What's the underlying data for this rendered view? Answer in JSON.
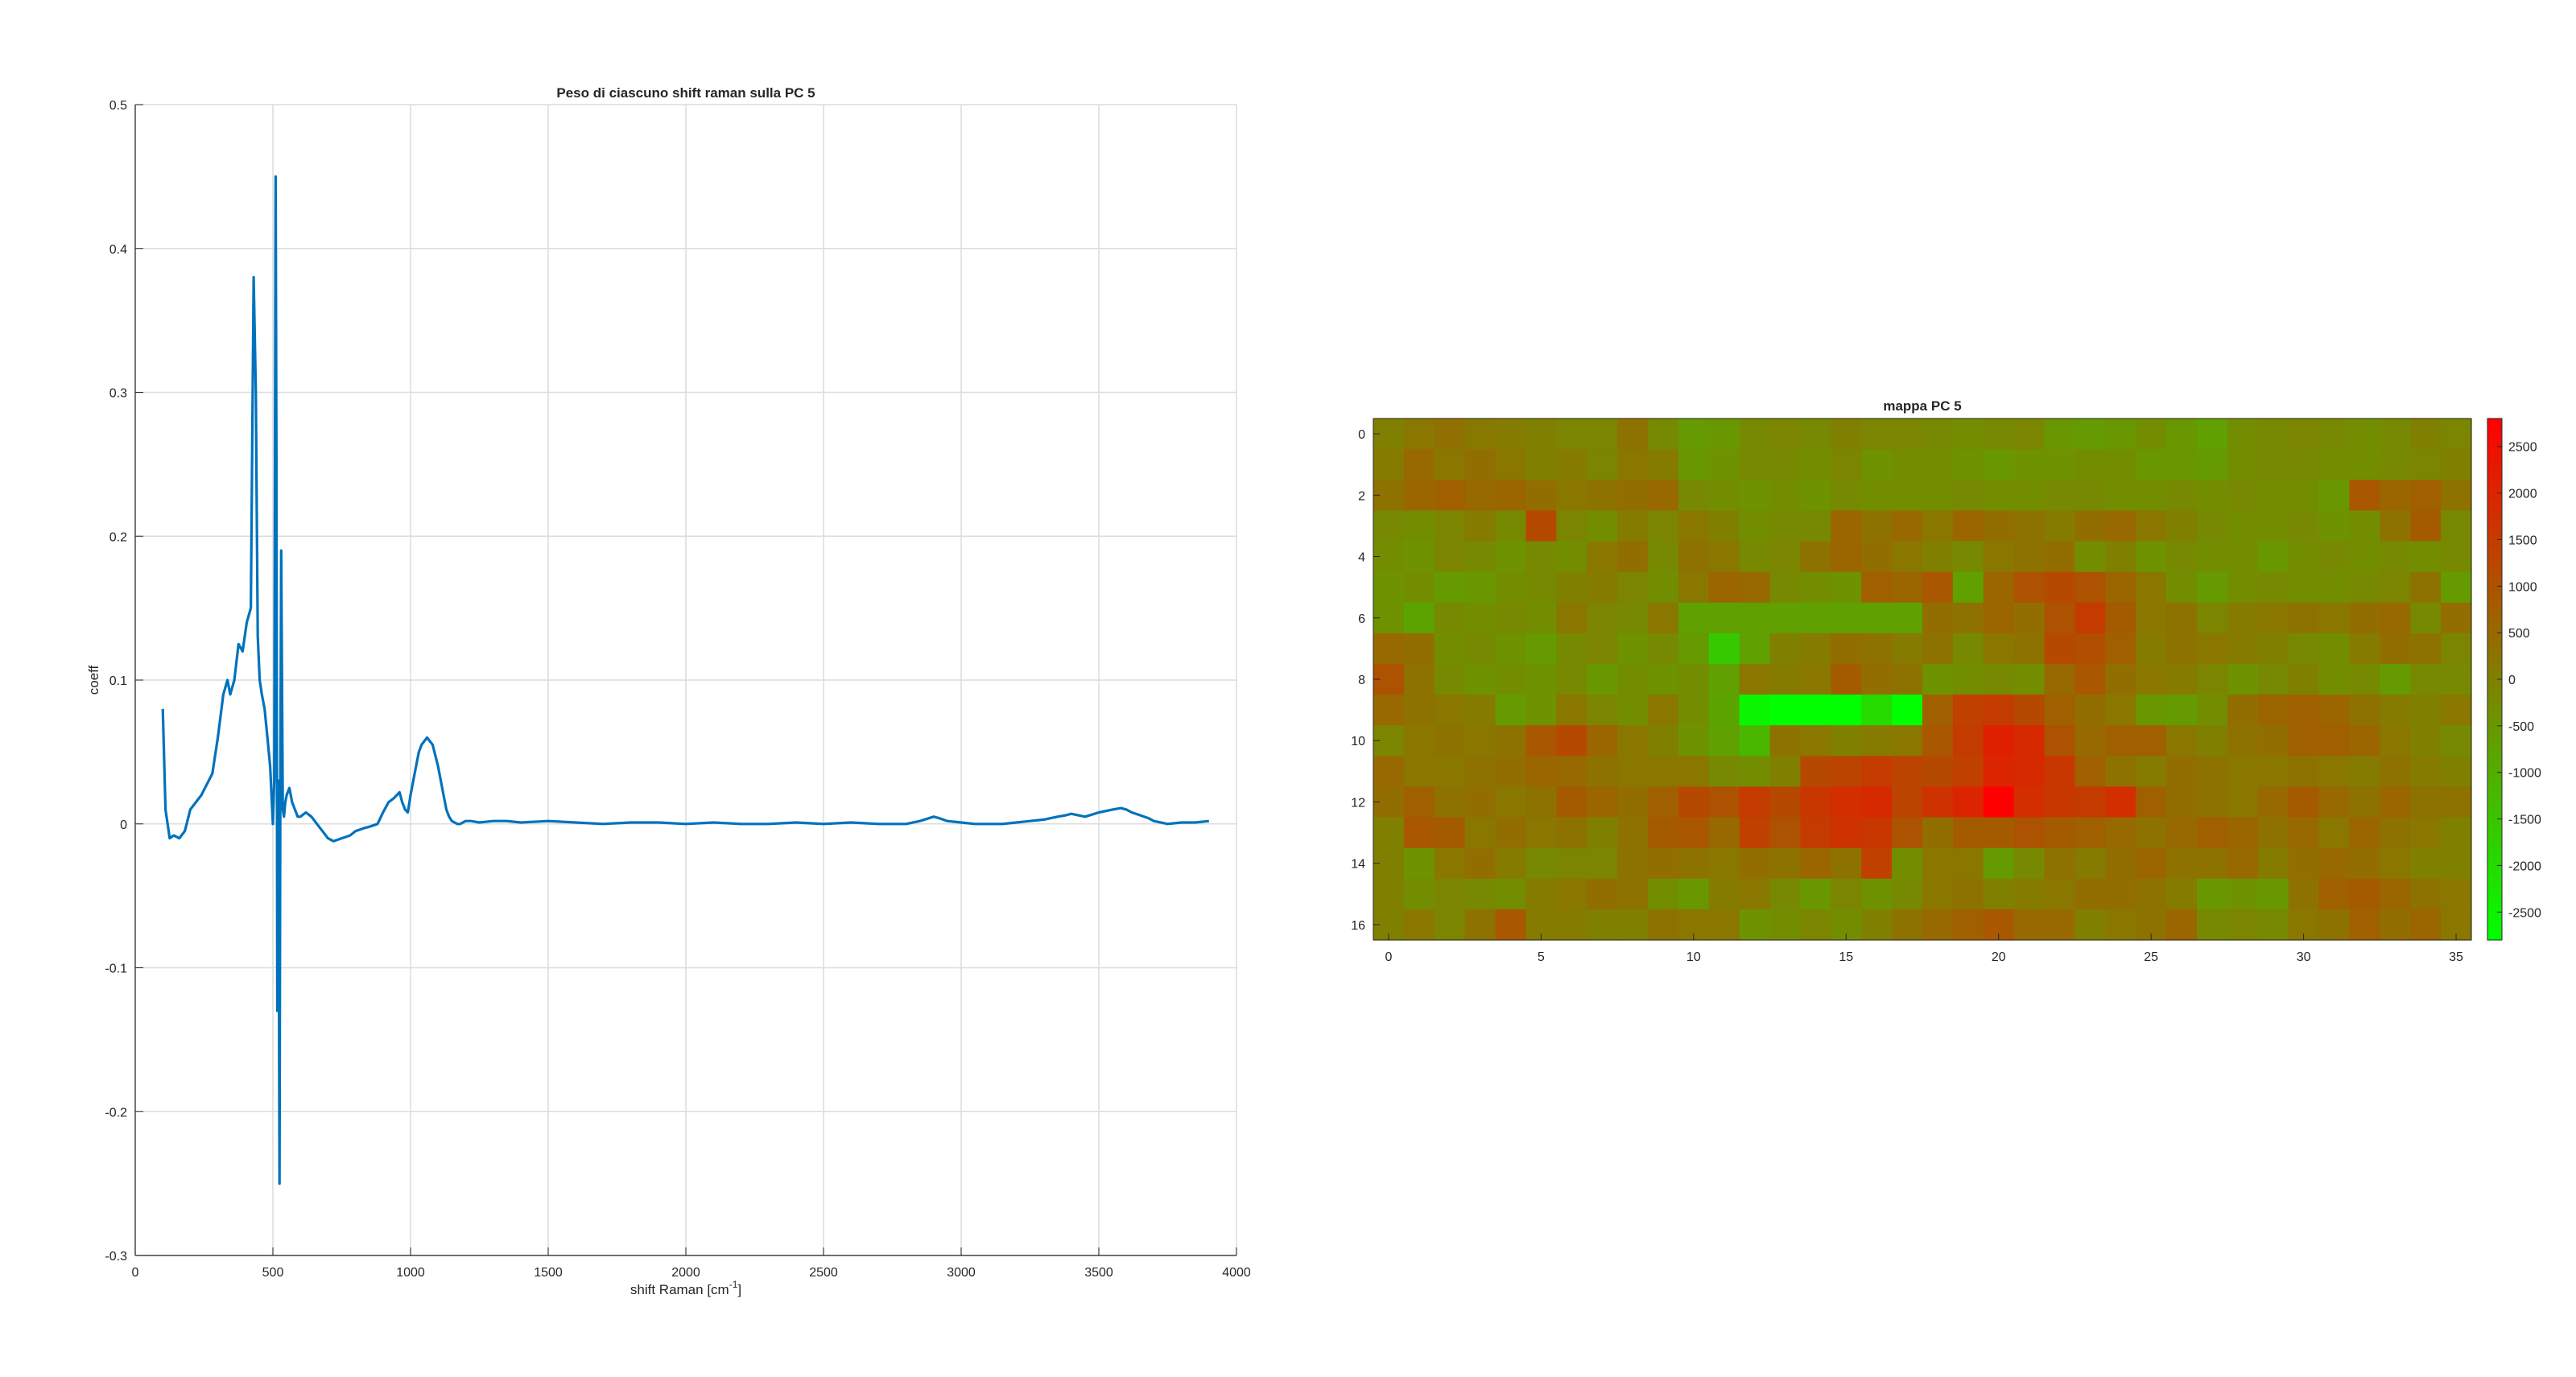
{
  "chart_data": [
    {
      "type": "line",
      "title": "Peso di ciascuno shift raman sulla PC 5",
      "xlabel": "shift Raman [cm",
      "xlabel_sup": "-1",
      "xlabel_end": "]",
      "ylabel": "coeff",
      "xlim": [
        0,
        4000
      ],
      "ylim": [
        -0.3,
        0.5
      ],
      "grid": true,
      "xticks": [
        0,
        500,
        1000,
        1500,
        2000,
        2500,
        3000,
        3500,
        4000
      ],
      "yticks": [
        -0.3,
        -0.2,
        -0.1,
        0,
        0.1,
        0.2,
        0.3,
        0.4,
        0.5
      ],
      "color": "#0072BD",
      "series": [
        {
          "x": [
            100,
            110,
            125,
            140,
            160,
            180,
            200,
            240,
            280,
            300,
            320,
            335,
            345,
            360,
            375,
            390,
            405,
            420,
            430,
            438,
            445,
            452,
            460,
            470,
            480,
            490,
            500,
            505,
            510,
            513,
            516,
            520,
            524,
            527,
            530,
            533,
            536,
            540,
            545,
            550,
            560,
            570,
            580,
            590,
            600,
            620,
            640,
            660,
            680,
            700,
            720,
            750,
            780,
            800,
            830,
            850,
            880,
            900,
            920,
            940,
            960,
            970,
            980,
            990,
            1000,
            1010,
            1020,
            1030,
            1040,
            1060,
            1080,
            1100,
            1120,
            1130,
            1140,
            1150,
            1160,
            1170,
            1180,
            1200,
            1220,
            1250,
            1300,
            1350,
            1400,
            1500,
            1600,
            1700,
            1800,
            1900,
            2000,
            2100,
            2200,
            2300,
            2400,
            2500,
            2600,
            2700,
            2800,
            2850,
            2900,
            2920,
            2950,
            3000,
            3050,
            3100,
            3150,
            3200,
            3250,
            3300,
            3350,
            3380,
            3400,
            3450,
            3500,
            3550,
            3580,
            3600,
            3620,
            3650,
            3680,
            3700,
            3750,
            3800,
            3850,
            3900
          ],
          "y": [
            0.08,
            0.01,
            -0.01,
            -0.008,
            -0.01,
            -0.005,
            0.01,
            0.02,
            0.035,
            0.06,
            0.09,
            0.1,
            0.09,
            0.1,
            0.125,
            0.12,
            0.14,
            0.15,
            0.38,
            0.3,
            0.13,
            0.1,
            0.09,
            0.08,
            0.06,
            0.04,
            0.0,
            0.03,
            0.45,
            0.25,
            -0.13,
            0.03,
            -0.25,
            0.02,
            0.19,
            0.1,
            0.01,
            0.005,
            0.015,
            0.02,
            0.025,
            0.015,
            0.01,
            0.005,
            0.005,
            0.008,
            0.005,
            0.0,
            -0.005,
            -0.01,
            -0.012,
            -0.01,
            -0.008,
            -0.005,
            -0.003,
            -0.002,
            0.0,
            0.008,
            0.015,
            0.018,
            0.022,
            0.015,
            0.01,
            0.008,
            0.02,
            0.03,
            0.04,
            0.05,
            0.055,
            0.06,
            0.055,
            0.04,
            0.02,
            0.01,
            0.005,
            0.002,
            0.001,
            0.0,
            0.0,
            0.002,
            0.002,
            0.001,
            0.002,
            0.002,
            0.001,
            0.002,
            0.001,
            0.0,
            0.001,
            0.001,
            0.0,
            0.001,
            0.0,
            0.0,
            0.001,
            0.0,
            0.001,
            0.0,
            0.0,
            0.002,
            0.005,
            0.004,
            0.002,
            0.001,
            0.0,
            0.0,
            0.0,
            0.001,
            0.002,
            0.003,
            0.005,
            0.006,
            0.007,
            0.005,
            0.008,
            0.01,
            0.011,
            0.01,
            0.008,
            0.006,
            0.004,
            0.002,
            0.0,
            0.001,
            0.001,
            0.002
          ]
        }
      ]
    },
    {
      "type": "heatmap",
      "title": "mappa PC 5",
      "xlim": [
        -0.5,
        35.5
      ],
      "ylim": [
        -0.5,
        16.5
      ],
      "xticks": [
        0,
        5,
        10,
        15,
        20,
        25,
        30,
        35
      ],
      "yticks": [
        0,
        2,
        4,
        6,
        8,
        10,
        12,
        14,
        16
      ],
      "colorbar": {
        "ticks": [
          2500,
          2000,
          1500,
          1000,
          500,
          0,
          -500,
          -1000,
          -1500,
          -2000,
          -2500
        ],
        "range": [
          -2800,
          2800
        ],
        "colors": [
          "#00ff00",
          "#808000",
          "#ff0000"
        ]
      },
      "rows": 17,
      "cols": 36,
      "values": [
        [
          0,
          200,
          350,
          150,
          100,
          0,
          -100,
          -100,
          300,
          -200,
          -600,
          -500,
          -200,
          -100,
          -200,
          0,
          -100,
          -100,
          -200,
          -300,
          -200,
          -100,
          -500,
          -600,
          -500,
          -300,
          -500,
          -700,
          -300,
          -200,
          -100,
          -200,
          -300,
          -200,
          0,
          -100
        ],
        [
          100,
          500,
          200,
          400,
          200,
          0,
          100,
          -100,
          200,
          100,
          -500,
          -400,
          -200,
          -200,
          -300,
          -100,
          -400,
          -300,
          -300,
          -400,
          -500,
          -400,
          -400,
          -300,
          -300,
          -500,
          -500,
          -600,
          -300,
          -200,
          -200,
          -300,
          -300,
          -200,
          -100,
          0
        ],
        [
          300,
          600,
          700,
          500,
          600,
          400,
          200,
          300,
          400,
          500,
          -200,
          -300,
          -400,
          -300,
          -400,
          -200,
          -300,
          -300,
          -300,
          -200,
          -300,
          -300,
          -200,
          -200,
          -300,
          -300,
          -200,
          -300,
          -200,
          -300,
          -300,
          -500,
          900,
          600,
          700,
          300
        ],
        [
          -200,
          -300,
          -100,
          100,
          -200,
          1200,
          -100,
          -300,
          100,
          -100,
          200,
          0,
          -300,
          -200,
          -200,
          600,
          300,
          500,
          200,
          600,
          400,
          300,
          100,
          400,
          500,
          200,
          0,
          -200,
          -300,
          -300,
          -200,
          -400,
          -300,
          300,
          800,
          -200
        ],
        [
          -300,
          -400,
          -100,
          -200,
          -400,
          -200,
          -300,
          200,
          400,
          -200,
          300,
          200,
          -200,
          -100,
          300,
          600,
          400,
          200,
          0,
          -200,
          200,
          300,
          400,
          -300,
          0,
          -400,
          -200,
          -300,
          -300,
          -500,
          -300,
          -200,
          -300,
          -200,
          -300,
          -200
        ],
        [
          -400,
          -300,
          -600,
          -500,
          -300,
          -200,
          0,
          100,
          -100,
          -300,
          200,
          600,
          500,
          -200,
          -300,
          -400,
          700,
          600,
          900,
          -700,
          600,
          1000,
          1200,
          1000,
          600,
          200,
          -300,
          -600,
          -300,
          -200,
          -300,
          -300,
          -200,
          -100,
          300,
          -600
        ],
        [
          -400,
          -800,
          -200,
          -300,
          -200,
          -300,
          200,
          -100,
          -200,
          200,
          -700,
          -700,
          -700,
          -700,
          -700,
          -700,
          -700,
          -700,
          400,
          300,
          600,
          400,
          1000,
          1500,
          800,
          200,
          300,
          -100,
          100,
          200,
          300,
          200,
          400,
          500,
          -200,
          400
        ],
        [
          500,
          400,
          -300,
          -200,
          -400,
          -600,
          -200,
          -100,
          -400,
          -200,
          -600,
          -1600,
          -700,
          0,
          100,
          400,
          300,
          100,
          300,
          -200,
          200,
          300,
          1200,
          1100,
          700,
          100,
          300,
          200,
          100,
          0,
          -200,
          -300,
          100,
          400,
          300,
          -100
        ],
        [
          1000,
          300,
          -200,
          -400,
          -300,
          -400,
          -200,
          -500,
          -300,
          -400,
          -300,
          -700,
          200,
          100,
          200,
          800,
          400,
          300,
          -400,
          -300,
          -200,
          -300,
          500,
          900,
          400,
          200,
          100,
          -100,
          -400,
          -200,
          0,
          -300,
          -200,
          -600,
          -200,
          -200
        ],
        [
          500,
          300,
          200,
          100,
          -600,
          -400,
          200,
          -100,
          -300,
          200,
          -300,
          -800,
          -2600,
          -2800,
          -2800,
          -2800,
          -2000,
          -2800,
          700,
          1400,
          1500,
          1200,
          700,
          400,
          200,
          -500,
          -600,
          -300,
          400,
          600,
          700,
          600,
          300,
          100,
          0,
          200
        ],
        [
          -100,
          200,
          300,
          200,
          300,
          900,
          1200,
          600,
          200,
          0,
          -400,
          -700,
          -1200,
          300,
          200,
          0,
          100,
          200,
          900,
          1500,
          2100,
          1900,
          1000,
          500,
          700,
          700,
          200,
          0,
          300,
          400,
          700,
          700,
          600,
          200,
          0,
          -200
        ],
        [
          500,
          200,
          200,
          300,
          400,
          600,
          500,
          300,
          200,
          200,
          200,
          -200,
          -300,
          0,
          1200,
          1300,
          1500,
          1300,
          1200,
          1400,
          2000,
          1900,
          1600,
          700,
          300,
          100,
          400,
          300,
          200,
          200,
          300,
          200,
          100,
          300,
          100,
          0
        ],
        [
          400,
          700,
          300,
          400,
          200,
          300,
          800,
          600,
          400,
          700,
          1200,
          1000,
          1500,
          1200,
          1600,
          1800,
          1900,
          1300,
          1700,
          2000,
          2800,
          1800,
          1600,
          1500,
          1800,
          700,
          400,
          300,
          200,
          500,
          800,
          500,
          300,
          600,
          300,
          300
        ],
        [
          0,
          900,
          800,
          200,
          400,
          200,
          300,
          0,
          300,
          800,
          900,
          500,
          1400,
          1000,
          1500,
          1700,
          1600,
          1000,
          400,
          800,
          800,
          1000,
          800,
          700,
          500,
          300,
          500,
          700,
          600,
          300,
          500,
          200,
          600,
          300,
          200,
          0
        ],
        [
          0,
          -400,
          200,
          400,
          100,
          -200,
          -100,
          -100,
          300,
          400,
          300,
          200,
          400,
          300,
          600,
          300,
          1400,
          -300,
          200,
          200,
          -600,
          -200,
          300,
          100,
          400,
          600,
          300,
          300,
          500,
          100,
          400,
          500,
          400,
          200,
          0,
          0
        ],
        [
          0,
          -300,
          -100,
          -200,
          -300,
          100,
          200,
          400,
          300,
          -300,
          -500,
          100,
          200,
          -200,
          -500,
          -100,
          -400,
          -200,
          200,
          300,
          0,
          100,
          200,
          400,
          400,
          300,
          100,
          -500,
          -400,
          -500,
          300,
          700,
          800,
          600,
          300,
          200
        ],
        [
          0,
          200,
          -100,
          300,
          900,
          100,
          100,
          0,
          0,
          300,
          200,
          200,
          -400,
          -300,
          -100,
          -300,
          0,
          300,
          500,
          700,
          900,
          500,
          500,
          0,
          200,
          300,
          600,
          -200,
          -100,
          -200,
          200,
          300,
          700,
          400,
          600,
          200
        ]
      ]
    }
  ]
}
